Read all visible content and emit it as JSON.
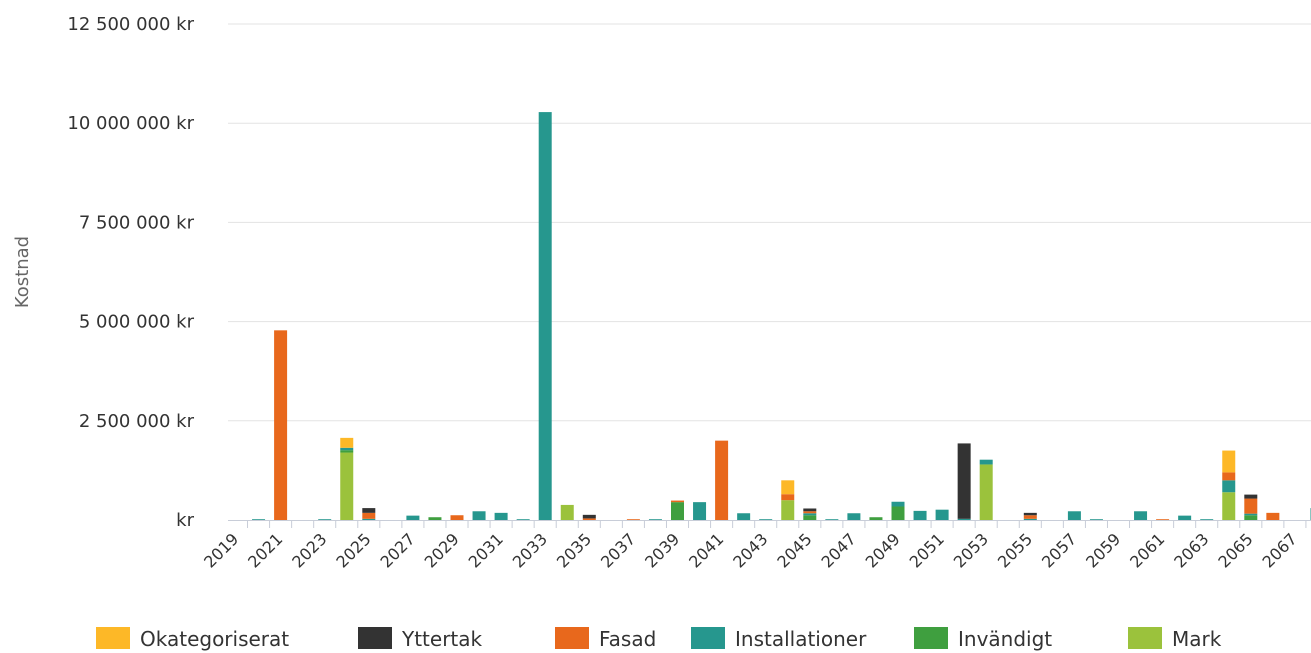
{
  "chart_data": {
    "type": "bar",
    "stacked": true,
    "ylabel": "Kostnad",
    "ylim": [
      0,
      12500000
    ],
    "y_ticks": [
      {
        "value": 0,
        "label": "kr"
      },
      {
        "value": 2500000,
        "label": "2 500 000 kr"
      },
      {
        "value": 5000000,
        "label": "5 000 000 kr"
      },
      {
        "value": 7500000,
        "label": "7 500 000 kr"
      },
      {
        "value": 10000000,
        "label": "10 000 000 kr"
      },
      {
        "value": 12500000,
        "label": "12 500 000 kr"
      }
    ],
    "categories": [
      "2019",
      "2020",
      "2021",
      "2022",
      "2023",
      "2024",
      "2025",
      "2026",
      "2027",
      "2028",
      "2029",
      "2030",
      "2031",
      "2032",
      "2033",
      "2034",
      "2035",
      "2036",
      "2037",
      "2038",
      "2039",
      "2040",
      "2041",
      "2042",
      "2043",
      "2044",
      "2045",
      "2046",
      "2047",
      "2048",
      "2049",
      "2050",
      "2051",
      "2052",
      "2053",
      "2054",
      "2055",
      "2056",
      "2057",
      "2058",
      "2059",
      "2060",
      "2061",
      "2062",
      "2063",
      "2064",
      "2065",
      "2066",
      "2067",
      "2068"
    ],
    "x_tick_labels": [
      "2019",
      "2021",
      "2023",
      "2025",
      "2027",
      "2029",
      "2031",
      "2033",
      "2035",
      "2037",
      "2039",
      "2041",
      "2043",
      "2045",
      "2047",
      "2049",
      "2051",
      "2053",
      "2055",
      "2057",
      "2059",
      "2061",
      "2063",
      "2065",
      "2067"
    ],
    "grid": true,
    "legend_position": "bottom",
    "series": [
      {
        "name": "Okategoriserat",
        "color": "#FDB827",
        "values": [
          0,
          0,
          0,
          0,
          0,
          250000,
          0,
          0,
          0,
          0,
          0,
          0,
          0,
          0,
          0,
          0,
          0,
          0,
          0,
          0,
          0,
          0,
          0,
          0,
          0,
          350000,
          0,
          0,
          0,
          0,
          0,
          0,
          0,
          0,
          0,
          0,
          0,
          0,
          0,
          0,
          0,
          0,
          0,
          0,
          0,
          550000,
          0,
          0,
          0,
          0
        ]
      },
      {
        "name": "Yttertak",
        "color": "#333333",
        "values": [
          0,
          0,
          0,
          0,
          0,
          0,
          120000,
          0,
          0,
          0,
          0,
          0,
          0,
          0,
          0,
          0,
          90000,
          0,
          0,
          0,
          0,
          0,
          0,
          0,
          0,
          0,
          70000,
          0,
          0,
          0,
          0,
          0,
          0,
          1900000,
          0,
          0,
          60000,
          0,
          0,
          0,
          0,
          0,
          0,
          0,
          0,
          0,
          100000,
          0,
          0,
          0
        ]
      },
      {
        "name": "Fasad",
        "color": "#E8681C",
        "values": [
          0,
          0,
          4780000,
          0,
          0,
          0,
          150000,
          0,
          0,
          0,
          120000,
          0,
          0,
          0,
          0,
          0,
          40000,
          0,
          20000,
          0,
          40000,
          0,
          2000000,
          0,
          0,
          150000,
          50000,
          0,
          0,
          0,
          0,
          0,
          0,
          0,
          0,
          0,
          90000,
          0,
          0,
          0,
          0,
          0,
          20000,
          0,
          0,
          200000,
          380000,
          180000,
          0,
          0
        ]
      },
      {
        "name": "Installationer",
        "color": "#26978E",
        "values": [
          0,
          20000,
          0,
          0,
          20000,
          60000,
          30000,
          0,
          110000,
          0,
          0,
          220000,
          180000,
          20000,
          10280000,
          0,
          0,
          0,
          0,
          20000,
          0,
          450000,
          0,
          170000,
          20000,
          0,
          50000,
          20000,
          170000,
          0,
          120000,
          230000,
          260000,
          30000,
          120000,
          0,
          30000,
          0,
          220000,
          20000,
          0,
          220000,
          0,
          110000,
          20000,
          300000,
          40000,
          0,
          0,
          300000
        ]
      },
      {
        "name": "Invändigt",
        "color": "#3F9F3F",
        "values": [
          0,
          0,
          0,
          0,
          0,
          60000,
          0,
          0,
          0,
          70000,
          0,
          0,
          0,
          0,
          0,
          0,
          0,
          0,
          0,
          0,
          450000,
          0,
          0,
          0,
          0,
          0,
          120000,
          0,
          0,
          70000,
          340000,
          0,
          0,
          0,
          0,
          0,
          0,
          0,
          0,
          0,
          0,
          0,
          0,
          0,
          0,
          0,
          120000,
          0,
          0,
          0
        ]
      },
      {
        "name": "Mark",
        "color": "#9BC23C",
        "values": [
          0,
          0,
          0,
          0,
          0,
          1700000,
          0,
          0,
          0,
          0,
          0,
          0,
          0,
          0,
          0,
          380000,
          0,
          0,
          0,
          0,
          0,
          0,
          0,
          0,
          0,
          500000,
          0,
          0,
          0,
          0,
          0,
          0,
          0,
          0,
          1400000,
          0,
          0,
          0,
          0,
          0,
          0,
          0,
          0,
          0,
          0,
          700000,
          0,
          0,
          0,
          0
        ]
      }
    ]
  }
}
